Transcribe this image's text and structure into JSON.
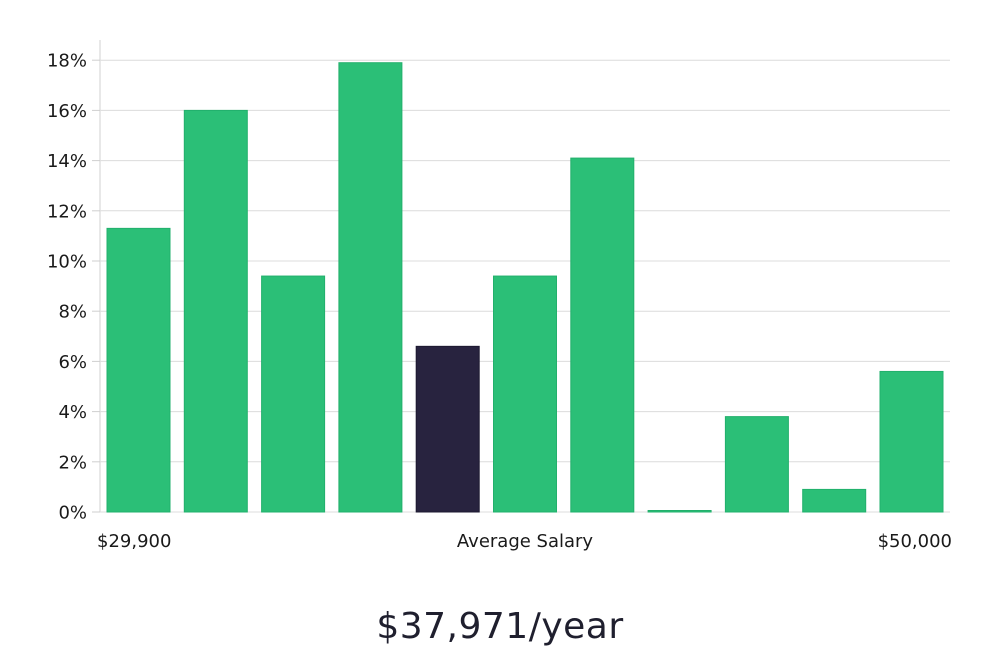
{
  "chart_data": {
    "type": "bar",
    "categories": [
      "1",
      "2",
      "3",
      "4",
      "5",
      "6",
      "7",
      "8",
      "9",
      "10",
      "11"
    ],
    "values": [
      11.3,
      16.0,
      9.4,
      17.9,
      6.6,
      9.4,
      14.1,
      0.05,
      3.8,
      0.9,
      5.6
    ],
    "highlight_index": 4,
    "ylim": [
      0,
      18.8
    ],
    "yticks": [
      0,
      2,
      4,
      6,
      8,
      10,
      12,
      14,
      16,
      18
    ],
    "ytick_suffix": "%",
    "x_min_label": "$29,900",
    "x_max_label": "$50,000",
    "xlabel": "Average Salary",
    "grid": true,
    "colors": {
      "bar": "#2bbf77",
      "highlight": "#28233f",
      "grid": "#dcdcdc",
      "axis": "#e0e0e0"
    }
  },
  "salary_display": "$37,971/year"
}
